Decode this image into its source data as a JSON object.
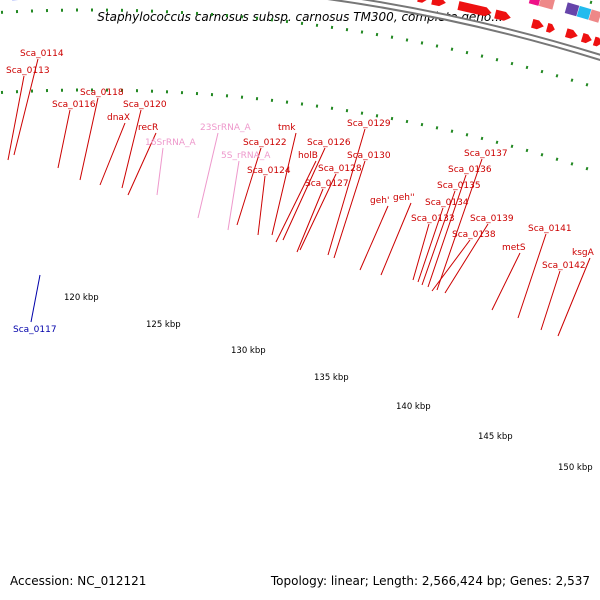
{
  "title": "Staphylococcus carnosus subsp. carnosus TM300, complete geno...",
  "accession_text": "Accession: NC_012121",
  "summary_text": "Topology: linear; Length: 2,566,424 bp; Genes: 2,537",
  "colors": {
    "cds": "#ee1111",
    "backbone": "#999999",
    "tick": "#228822",
    "label_red": "#cc0000",
    "label_pink": "#ee99cc",
    "label_blue": "#0000aa",
    "rrna": "#ffaad4",
    "hit_magenta": "#ee1188",
    "hit_pink": "#ee8888",
    "hit_cyan": "#22bbee",
    "hit_steel": "#5577aa",
    "hit_gray": "#777777",
    "hit_light": "#cccccc"
  },
  "kbp_labels": [
    "120 kbp",
    "125 kbp",
    "130 kbp",
    "135 kbp",
    "140 kbp",
    "145 kbp",
    "150 kbp"
  ],
  "gene_labels": [
    "Sca_0114",
    "Sca_0113",
    "Sca_0118",
    "Sca_0116",
    "dnaX",
    "Sca_0120",
    "recR",
    "23SrRNA_A",
    "16SrRNA_A",
    "tmk",
    "Sca_0122",
    "5S_rRNA_A",
    "Sca_0126",
    "holB",
    "Sca_0124",
    "Sca_0128",
    "Sca_0127",
    "Sca_0129",
    "Sca_0130",
    "geh'",
    "geh''",
    "Sca_0137",
    "Sca_0136",
    "Sca_0135",
    "Sca_0134",
    "Sca_0133",
    "Sca_0139",
    "Sca_0138",
    "metS",
    "Sca_0141",
    "ksgA",
    "Sca_0142",
    "Sca_0117"
  ]
}
